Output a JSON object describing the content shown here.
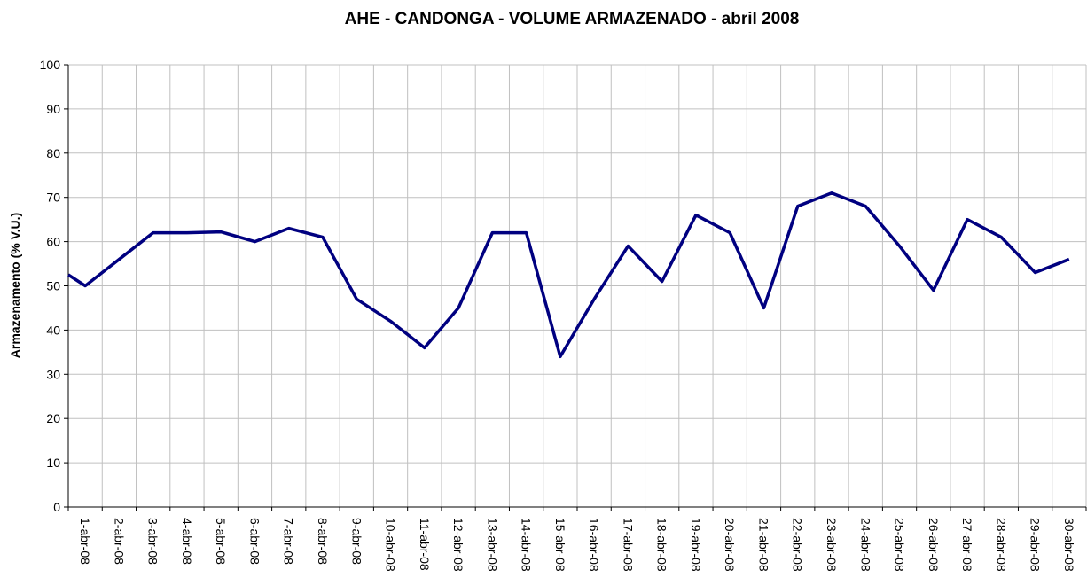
{
  "chart_data": {
    "type": "line",
    "title": "AHE - CANDONGA - VOLUME ARMAZENADO - abril 2008",
    "y_label": "Armazenamento (% V.U.)",
    "categories": [
      null,
      "1-abr-08",
      "2-abr-08",
      "3-abr-08",
      "4-abr-08",
      "5-abr-08",
      "6-abr-08",
      "7-abr-08",
      "8-abr-08",
      "9-abr-08",
      "10-abr-08",
      "11-abr-08",
      "12-abr-08",
      "13-abr-08",
      "14-abr-08",
      "15-abr-08",
      "16-abr-08",
      "17-abr-08",
      "18-abr-08",
      "19-abr-08",
      "20-abr-08",
      "21-abr-08",
      "22-abr-08",
      "23-abr-08",
      "24-abr-08",
      "25-abr-08",
      "26-abr-08",
      "27-abr-08",
      "28-abr-08",
      "29-abr-08",
      "30-abr-08"
    ],
    "series": [
      {
        "name": "Armazenamento",
        "color": "#000080",
        "values": [
          52.5,
          50,
          56,
          62,
          62,
          62.2,
          60,
          63,
          61,
          47,
          42,
          36,
          45,
          62,
          62,
          34,
          47,
          59,
          51,
          66,
          62,
          45,
          68,
          71,
          68,
          59,
          49,
          65,
          61,
          53,
          56
        ]
      }
    ],
    "ylim": [
      0,
      100
    ],
    "yticks": [
      0,
      10,
      20,
      30,
      40,
      50,
      60,
      70,
      80,
      90,
      100
    ],
    "grid": true
  }
}
